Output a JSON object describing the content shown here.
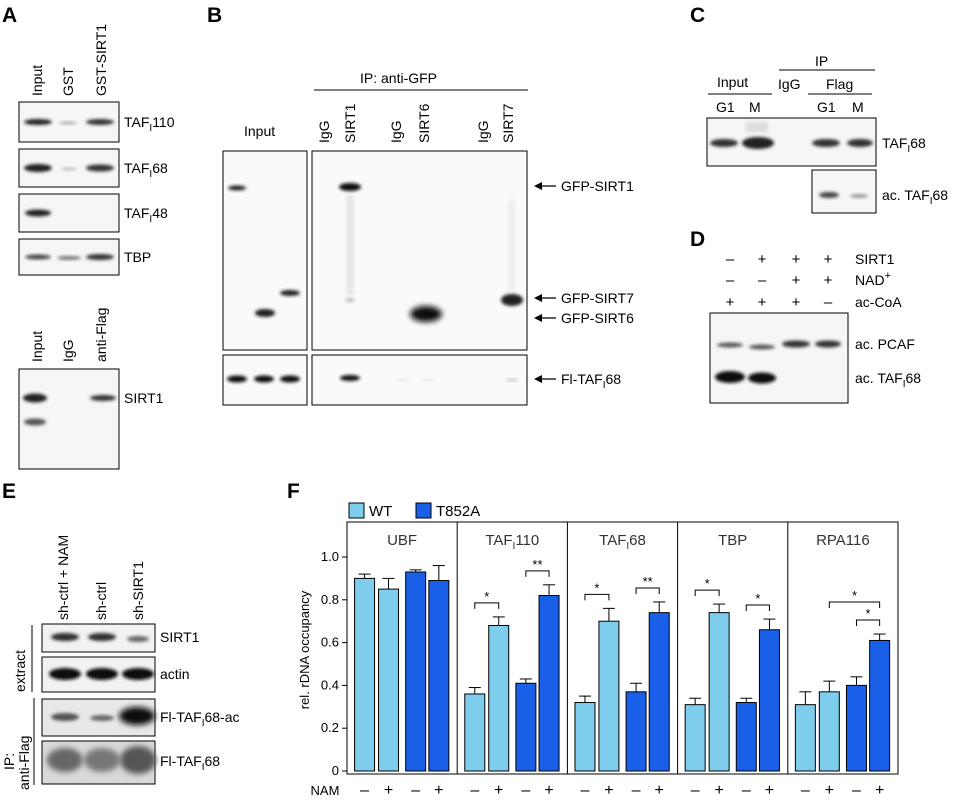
{
  "panels": {
    "A": {
      "label": "A",
      "lanes_top": [
        "Input",
        "GST",
        "GST-SIRT1"
      ],
      "bands_top": [
        {
          "pre": "TAF",
          "sub": "I",
          "post": "110"
        },
        {
          "pre": "TAF",
          "sub": "I",
          "post": "68"
        },
        {
          "pre": "TAF",
          "sub": "I",
          "post": "48"
        },
        {
          "pre": "TBP",
          "sub": "",
          "post": ""
        }
      ],
      "lanes_bottom": [
        "Input",
        "IgG",
        "anti-Flag"
      ],
      "band_bottom": "SIRT1"
    },
    "B": {
      "label": "B",
      "ip_title": "IP: anti-GFP",
      "input_label": "Input",
      "lanes": [
        "IgG",
        "SIRT1",
        "IgG",
        "SIRT6",
        "IgG",
        "SIRT7"
      ],
      "arrows": [
        {
          "pre": "GFP-SIRT1",
          "sub": "",
          "post": ""
        },
        {
          "pre": "GFP-SIRT7",
          "sub": "",
          "post": ""
        },
        {
          "pre": "GFP-SIRT6",
          "sub": "",
          "post": ""
        },
        {
          "pre": "Fl-TAF",
          "sub": "I",
          "post": "68"
        }
      ]
    },
    "C": {
      "label": "C",
      "ip_title": "IP",
      "input_label": "Input",
      "igg_label": "IgG",
      "flag_label": "Flag",
      "lanes": [
        "G1",
        "M",
        "G1",
        "M"
      ],
      "bands": [
        {
          "pre": "TAF",
          "sub": "I",
          "post": "68"
        },
        {
          "pre": "ac. TAF",
          "sub": "I",
          "post": "68"
        }
      ]
    },
    "D": {
      "label": "D",
      "rows": [
        {
          "name": "SIRT1",
          "signs": [
            "–",
            "+",
            "+",
            "+"
          ]
        },
        {
          "name": "NAD",
          "sup": "+",
          "signs": [
            "–",
            "–",
            "+",
            "+"
          ]
        },
        {
          "name": "ac-CoA",
          "signs": [
            "+",
            "+",
            "+",
            "–"
          ]
        }
      ],
      "bands": [
        {
          "pre": "ac. PCAF",
          "sub": "",
          "post": ""
        },
        {
          "pre": "ac. TAF",
          "sub": "I",
          "post": "68"
        }
      ]
    },
    "E": {
      "label": "E",
      "lanes": [
        "sh-ctrl + NAM",
        "sh-ctrl",
        "sh-SIRT1"
      ],
      "group_extract": "extract",
      "group_ip_1": "IP:",
      "group_ip_2": "anti-Flag",
      "bands": [
        {
          "pre": "SIRT1",
          "sub": "",
          "post": ""
        },
        {
          "pre": "actin",
          "sub": "",
          "post": ""
        },
        {
          "pre": "Fl-TAF",
          "sub": "I",
          "post": "68-ac"
        },
        {
          "pre": "Fl-TAF",
          "sub": "I",
          "post": "68"
        }
      ]
    }
  },
  "chart_data": {
    "type": "bar",
    "panel_label": "F",
    "ylabel": "rel. rDNA occupancy",
    "ylim": [
      0,
      1.0
    ],
    "yticks": [
      "0",
      "0.2",
      "0.4",
      "0.6",
      "0.8",
      "1.0"
    ],
    "xaxis_label": "NAM",
    "nam": [
      "–",
      "+",
      "–",
      "+"
    ],
    "legend": [
      {
        "name": "WT",
        "color": "#7fcdec"
      },
      {
        "name": "T852A",
        "color": "#1a5fe8"
      }
    ],
    "groups": [
      {
        "pre": "UBF",
        "sub": "",
        "post": "",
        "values": [
          0.9,
          0.85,
          0.93,
          0.89
        ],
        "errors": [
          0.02,
          0.05,
          0.01,
          0.07
        ],
        "sig": []
      },
      {
        "pre": "TAF",
        "sub": "I",
        "post": "110",
        "values": [
          0.36,
          0.68,
          0.41,
          0.82
        ],
        "errors": [
          0.03,
          0.04,
          0.02,
          0.05
        ],
        "sig": [
          {
            "a": 0,
            "b": 1,
            "label": "*"
          },
          {
            "a": 2,
            "b": 3,
            "label": "**"
          }
        ]
      },
      {
        "pre": "TAF",
        "sub": "I",
        "post": "68",
        "values": [
          0.32,
          0.7,
          0.37,
          0.74
        ],
        "errors": [
          0.03,
          0.06,
          0.04,
          0.05
        ],
        "sig": [
          {
            "a": 0,
            "b": 1,
            "label": "*"
          },
          {
            "a": 2,
            "b": 3,
            "label": "**"
          }
        ]
      },
      {
        "pre": "TBP",
        "sub": "",
        "post": "",
        "values": [
          0.31,
          0.74,
          0.32,
          0.66
        ],
        "errors": [
          0.03,
          0.04,
          0.02,
          0.05
        ],
        "sig": [
          {
            "a": 0,
            "b": 1,
            "label": "*"
          },
          {
            "a": 2,
            "b": 3,
            "label": "*"
          }
        ]
      },
      {
        "pre": "RPA116",
        "sub": "",
        "post": "",
        "values": [
          0.31,
          0.37,
          0.4,
          0.61
        ],
        "errors": [
          0.06,
          0.05,
          0.04,
          0.03
        ],
        "sig": [
          {
            "a": 1,
            "b": 3,
            "label": "*"
          },
          {
            "a": 2,
            "b": 3,
            "label": "*"
          }
        ]
      }
    ]
  }
}
